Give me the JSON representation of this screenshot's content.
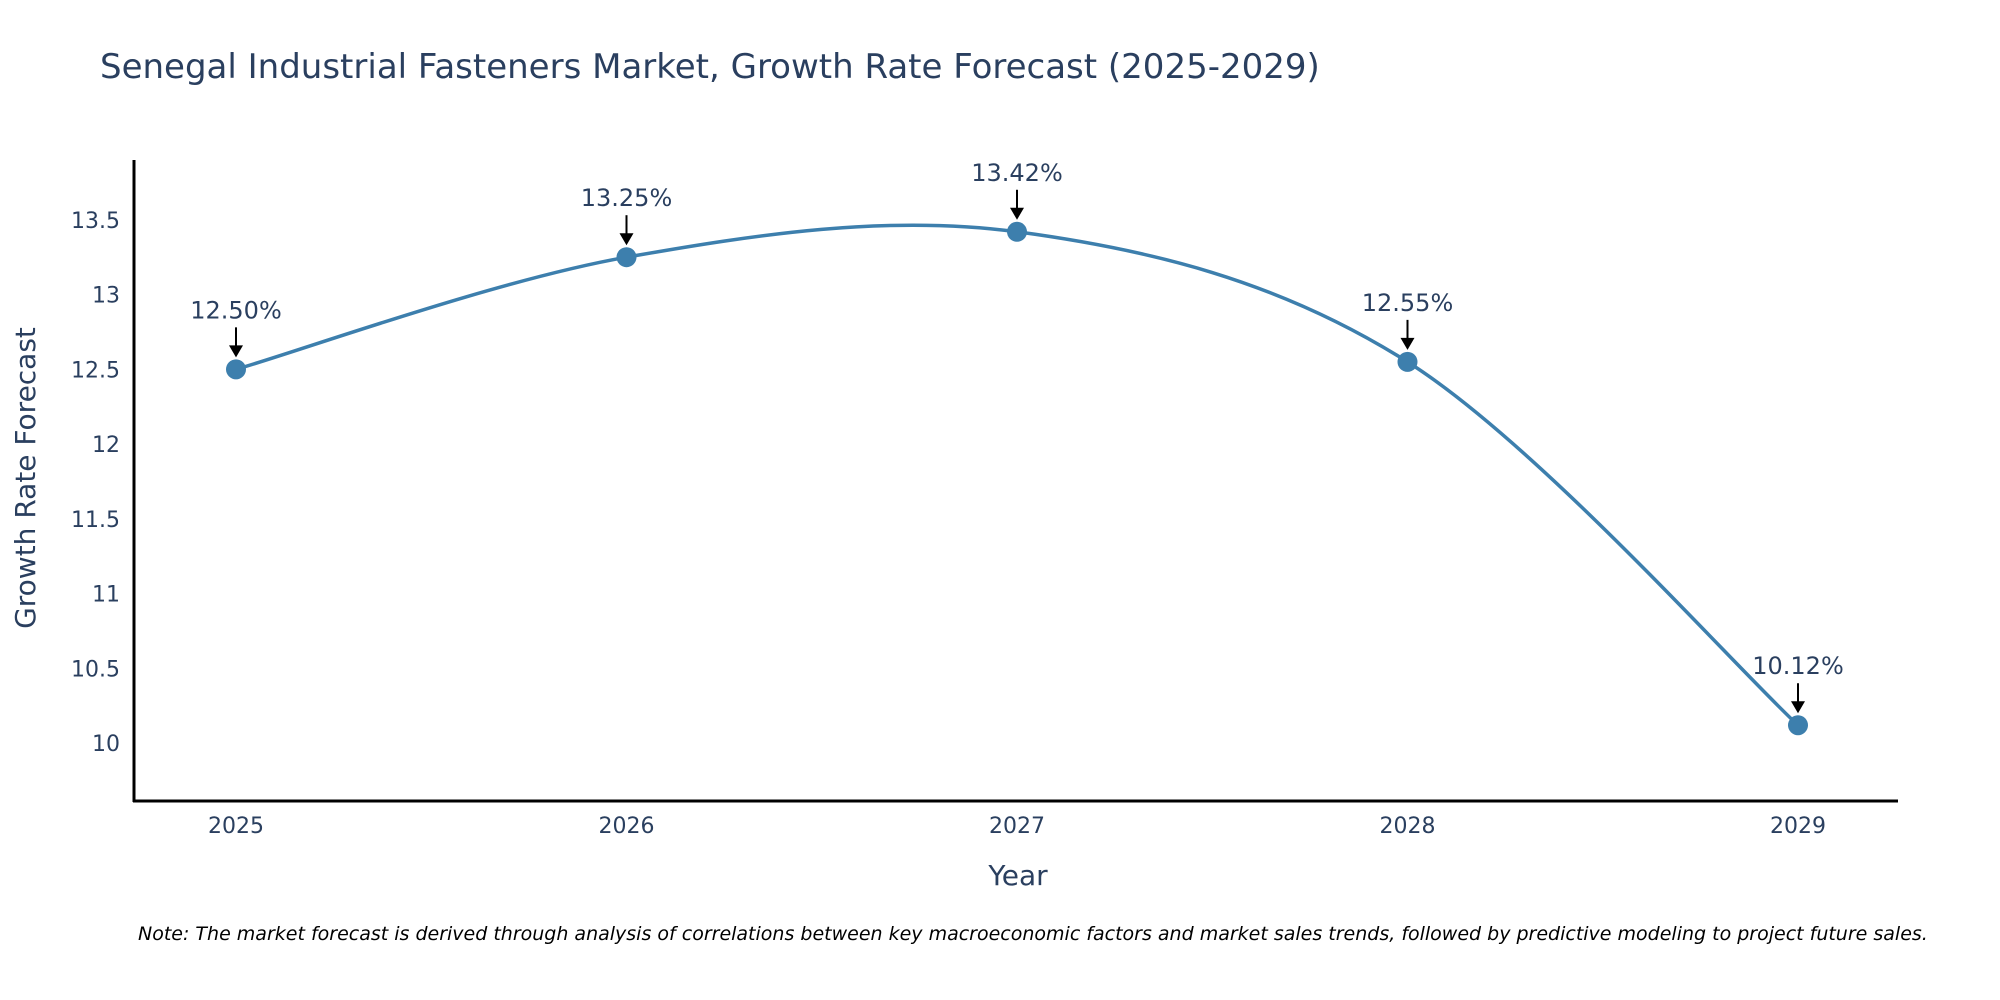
{
  "chart_data": {
    "type": "line",
    "title": "Senegal Industrial Fasteners Market, Growth Rate Forecast (2025-2029)",
    "xlabel": "Year",
    "ylabel": "Growth Rate Forecast",
    "x": [
      "2025",
      "2026",
      "2027",
      "2028",
      "2029"
    ],
    "series": [
      {
        "name": "Growth Rate Forecast",
        "values": [
          12.5,
          13.25,
          13.42,
          12.55,
          10.12
        ]
      }
    ],
    "data_labels": [
      "12.50%",
      "13.25%",
      "13.42%",
      "12.55%",
      "10.12%"
    ],
    "y_ticks": [
      10,
      10.5,
      11,
      11.5,
      12,
      12.5,
      13,
      13.5
    ],
    "y_tick_labels": [
      "10",
      "10.5",
      "11",
      "11.5",
      "12",
      "12.5",
      "13",
      "13.5"
    ],
    "ylim": [
      9.62,
      13.9
    ],
    "grid": false,
    "line_color": "#3d7fad",
    "note": "Note: The market forecast is derived through analysis of correlations between key macroeconomic factors and market sales trends, followed by predictive modeling to project future sales."
  }
}
